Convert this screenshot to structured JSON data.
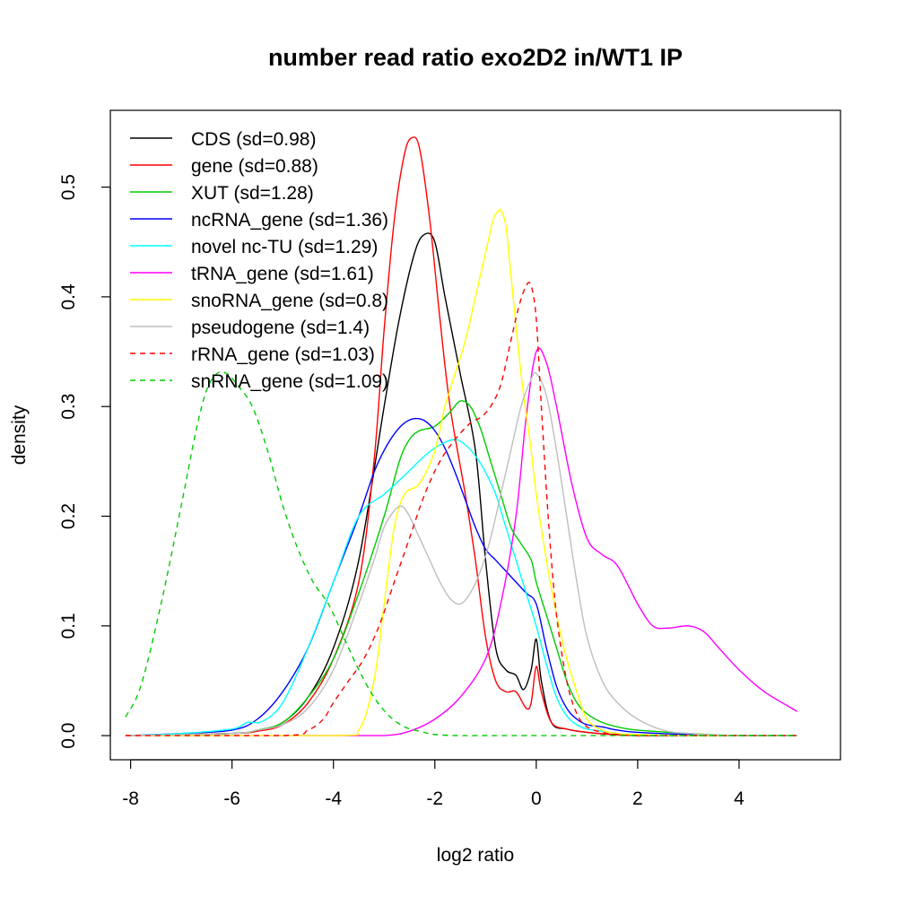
{
  "chart_data": {
    "type": "line",
    "title": "number read ratio exo2D2 in/WT1 IP",
    "xlabel": "log2 ratio",
    "ylabel": "density",
    "xlim": [
      -8.4,
      6.0
    ],
    "ylim": [
      -0.022,
      0.57
    ],
    "x_ticks": [
      -8,
      -6,
      -4,
      -2,
      0,
      2,
      4
    ],
    "x_tick_labels": [
      "-8",
      "-6",
      "-4",
      "-2",
      "0",
      "2",
      "4"
    ],
    "y_ticks": [
      0.0,
      0.1,
      0.2,
      0.3,
      0.4,
      0.5
    ],
    "y_tick_labels": [
      "0.0",
      "0.1",
      "0.2",
      "0.3",
      "0.4",
      "0.5"
    ],
    "grid": false,
    "legend_position": "top-left",
    "series": [
      {
        "name": "CDS (sd=0.98)",
        "color": "#000000",
        "dash": "solid",
        "x": [
          -8.1,
          -6,
          -5.5,
          -5,
          -4.5,
          -4,
          -3.5,
          -3,
          -2.7,
          -2.4,
          -2.2,
          -2,
          -1.8,
          -1.5,
          -1.2,
          -1,
          -0.8,
          -0.6,
          -0.4,
          -0.25,
          -0.1,
          0,
          0.1,
          0.3,
          0.6,
          1,
          1.5,
          2,
          3,
          4,
          5.15
        ],
        "y": [
          0.0,
          0.002,
          0.005,
          0.012,
          0.035,
          0.08,
          0.16,
          0.3,
          0.38,
          0.44,
          0.457,
          0.45,
          0.4,
          0.33,
          0.26,
          0.16,
          0.08,
          0.06,
          0.055,
          0.042,
          0.06,
          0.088,
          0.05,
          0.012,
          0.006,
          0.003,
          0.001,
          0.0,
          0.0,
          0.0,
          0.0
        ]
      },
      {
        "name": "gene (sd=0.88)",
        "color": "#ff0000",
        "dash": "solid",
        "x": [
          -8.1,
          -6,
          -5.5,
          -5,
          -4.5,
          -4,
          -3.5,
          -3.2,
          -3,
          -2.8,
          -2.6,
          -2.45,
          -2.3,
          -2.1,
          -1.9,
          -1.7,
          -1.4,
          -1.2,
          -1,
          -0.8,
          -0.6,
          -0.4,
          -0.2,
          -0.1,
          0,
          0.1,
          0.3,
          0.6,
          1,
          1.5,
          2,
          3,
          4,
          5.15
        ],
        "y": [
          0.0,
          0.002,
          0.004,
          0.01,
          0.03,
          0.07,
          0.14,
          0.25,
          0.37,
          0.47,
          0.53,
          0.545,
          0.535,
          0.47,
          0.38,
          0.3,
          0.22,
          0.16,
          0.09,
          0.05,
          0.04,
          0.04,
          0.025,
          0.03,
          0.063,
          0.04,
          0.012,
          0.006,
          0.003,
          0.001,
          0.0,
          0.0,
          0.0,
          0.0
        ]
      },
      {
        "name": "XUT (sd=1.28)",
        "color": "#00cc00",
        "dash": "solid",
        "x": [
          -8.1,
          -6,
          -5.5,
          -5,
          -4.5,
          -4,
          -3.5,
          -3,
          -2.7,
          -2.5,
          -2.3,
          -2,
          -1.7,
          -1.5,
          -1.3,
          -1.1,
          -0.9,
          -0.7,
          -0.5,
          -0.3,
          -0.1,
          0,
          0.2,
          0.4,
          0.6,
          0.8,
          1,
          1.3,
          1.6,
          2,
          3,
          4,
          5.15
        ],
        "y": [
          0.0,
          0.002,
          0.005,
          0.012,
          0.035,
          0.07,
          0.13,
          0.2,
          0.25,
          0.27,
          0.278,
          0.282,
          0.295,
          0.305,
          0.3,
          0.28,
          0.25,
          0.22,
          0.19,
          0.175,
          0.16,
          0.14,
          0.11,
          0.08,
          0.05,
          0.03,
          0.02,
          0.012,
          0.008,
          0.005,
          0.002,
          0.0,
          0.0
        ]
      },
      {
        "name": "ncRNA_gene (sd=1.36)",
        "color": "#0000ff",
        "dash": "solid",
        "x": [
          -8.1,
          -7,
          -6,
          -5.5,
          -5,
          -4.5,
          -4,
          -3.5,
          -3.2,
          -3,
          -2.8,
          -2.6,
          -2.4,
          -2.2,
          -2,
          -1.8,
          -1.6,
          -1.4,
          -1.2,
          -1,
          -0.8,
          -0.6,
          -0.4,
          -0.2,
          0,
          0.2,
          0.4,
          0.6,
          0.8,
          1,
          1.3,
          1.6,
          2,
          3,
          4,
          5.15
        ],
        "y": [
          0.0,
          0.002,
          0.005,
          0.015,
          0.04,
          0.08,
          0.14,
          0.2,
          0.24,
          0.26,
          0.275,
          0.285,
          0.289,
          0.287,
          0.278,
          0.262,
          0.24,
          0.215,
          0.19,
          0.17,
          0.16,
          0.15,
          0.14,
          0.13,
          0.12,
          0.08,
          0.045,
          0.025,
          0.015,
          0.01,
          0.008,
          0.005,
          0.003,
          0.001,
          0.0,
          0.0
        ]
      },
      {
        "name": "novel nc-TU (sd=1.29)",
        "color": "#00ffff",
        "dash": "solid",
        "x": [
          -8.1,
          -7,
          -6,
          -5.7,
          -5.4,
          -5,
          -4.5,
          -4,
          -3.5,
          -3,
          -2.6,
          -2.2,
          -1.9,
          -1.6,
          -1.4,
          -1.2,
          -1,
          -0.8,
          -0.6,
          -0.4,
          -0.2,
          0,
          0.2,
          0.4,
          0.6,
          0.8,
          1,
          1.3,
          1.6,
          2,
          3,
          4,
          5.15
        ],
        "y": [
          0.0,
          0.002,
          0.006,
          0.012,
          0.013,
          0.03,
          0.08,
          0.14,
          0.2,
          0.22,
          0.237,
          0.255,
          0.265,
          0.27,
          0.265,
          0.255,
          0.24,
          0.22,
          0.19,
          0.16,
          0.13,
          0.1,
          0.065,
          0.035,
          0.018,
          0.01,
          0.006,
          0.004,
          0.002,
          0.001,
          0.0,
          0.0,
          0.0
        ]
      },
      {
        "name": "tRNA_gene (sd=1.61)",
        "color": "#ff00ff",
        "dash": "solid",
        "x": [
          -8.1,
          -4,
          -3,
          -2.5,
          -2,
          -1.5,
          -1,
          -0.7,
          -0.4,
          -0.2,
          0,
          0.2,
          0.4,
          0.7,
          1,
          1.3,
          1.6,
          2,
          2.3,
          2.6,
          3,
          3.3,
          3.6,
          4,
          4.5,
          5.15
        ],
        "y": [
          0.0,
          0.0,
          0.0,
          0.004,
          0.015,
          0.035,
          0.07,
          0.12,
          0.2,
          0.29,
          0.35,
          0.34,
          0.3,
          0.23,
          0.18,
          0.165,
          0.155,
          0.12,
          0.1,
          0.098,
          0.1,
          0.095,
          0.08,
          0.06,
          0.04,
          0.022
        ]
      },
      {
        "name": "snoRNA_gene (sd=0.8)",
        "color": "#ffff00",
        "dash": "solid",
        "x": [
          -8.1,
          -4,
          -3.5,
          -3.2,
          -3,
          -2.8,
          -2.6,
          -2.3,
          -2,
          -1.8,
          -1.6,
          -1.4,
          -1.2,
          -1,
          -0.85,
          -0.75,
          -0.7,
          -0.6,
          -0.5,
          -0.3,
          -0.1,
          0,
          0.2,
          0.4,
          0.6,
          0.8,
          1,
          1.3,
          1.6,
          2,
          3,
          5.15
        ],
        "y": [
          0.0,
          0.0,
          0.005,
          0.05,
          0.12,
          0.19,
          0.22,
          0.23,
          0.26,
          0.3,
          0.33,
          0.36,
          0.4,
          0.44,
          0.47,
          0.478,
          0.479,
          0.465,
          0.42,
          0.33,
          0.26,
          0.22,
          0.16,
          0.11,
          0.07,
          0.04,
          0.015,
          0.005,
          0.002,
          0.001,
          0.0,
          0.0
        ]
      },
      {
        "name": "pseudogene (sd=1.4)",
        "color": "#bebebe",
        "dash": "solid",
        "x": [
          -8.1,
          -6,
          -5.5,
          -5,
          -4.5,
          -4,
          -3.5,
          -3.2,
          -3,
          -2.8,
          -2.65,
          -2.5,
          -2.3,
          -2.1,
          -1.9,
          -1.7,
          -1.5,
          -1.3,
          -1.1,
          -0.9,
          -0.7,
          -0.5,
          -0.3,
          -0.1,
          0,
          0.2,
          0.4,
          0.6,
          0.8,
          1,
          1.3,
          1.6,
          2,
          2.5,
          3,
          4,
          5.15
        ],
        "y": [
          0.0,
          0.002,
          0.005,
          0.01,
          0.025,
          0.06,
          0.12,
          0.16,
          0.19,
          0.205,
          0.209,
          0.2,
          0.18,
          0.16,
          0.14,
          0.125,
          0.12,
          0.13,
          0.15,
          0.18,
          0.22,
          0.26,
          0.3,
          0.325,
          0.33,
          0.31,
          0.26,
          0.2,
          0.14,
          0.09,
          0.05,
          0.03,
          0.015,
          0.005,
          0.002,
          0.0,
          0.0
        ]
      },
      {
        "name": "rRNA_gene (sd=1.03)",
        "color": "#ff0000",
        "dash": "dashed",
        "x": [
          -8.1,
          -5,
          -4.5,
          -4.2,
          -4,
          -3.7,
          -3.4,
          -3.1,
          -2.8,
          -2.5,
          -2.2,
          -1.9,
          -1.6,
          -1.3,
          -1.1,
          -0.9,
          -0.7,
          -0.5,
          -0.35,
          -0.2,
          -0.1,
          0,
          0.1,
          0.25,
          0.4,
          0.6,
          0.8,
          1,
          1.3,
          1.6,
          2,
          3,
          5.15
        ],
        "y": [
          0.0,
          0.0,
          0.005,
          0.015,
          0.03,
          0.05,
          0.07,
          0.1,
          0.14,
          0.18,
          0.22,
          0.25,
          0.27,
          0.285,
          0.29,
          0.3,
          0.32,
          0.36,
          0.39,
          0.41,
          0.41,
          0.38,
          0.3,
          0.19,
          0.11,
          0.05,
          0.02,
          0.008,
          0.003,
          0.001,
          0.0,
          0.0,
          0.0
        ]
      },
      {
        "name": "snRNA_gene (sd=1.09)",
        "color": "#00cc00",
        "dash": "dashed",
        "x": [
          -8.1,
          -7.8,
          -7.4,
          -7,
          -6.7,
          -6.5,
          -6.3,
          -6.1,
          -5.9,
          -5.6,
          -5.3,
          -5,
          -4.7,
          -4.4,
          -4.1,
          -3.8,
          -3.5,
          -3.2,
          -2.9,
          -2.6,
          -2.3,
          -2,
          -1.5,
          -1,
          0,
          2,
          5.15
        ],
        "y": [
          0.017,
          0.045,
          0.12,
          0.21,
          0.28,
          0.315,
          0.33,
          0.33,
          0.32,
          0.3,
          0.26,
          0.21,
          0.17,
          0.14,
          0.12,
          0.09,
          0.06,
          0.035,
          0.018,
          0.008,
          0.004,
          0.001,
          0.0,
          0.0,
          0.0,
          0.0,
          0.0
        ]
      }
    ]
  }
}
